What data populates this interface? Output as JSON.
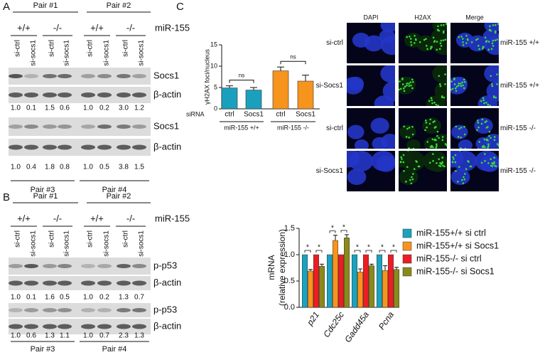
{
  "panel_labels": [
    "A",
    "B",
    "C"
  ],
  "blots": [
    {
      "top_pairs": [
        "Pair #1",
        "Pair #2"
      ],
      "genotypes": [
        "+/+",
        "-/-",
        "+/+",
        "-/-"
      ],
      "genotype_label": "miR-155",
      "lanes": [
        "si-ctrl",
        "si-socs1",
        "si-ctrl",
        "si-socs1",
        "si-ctrl",
        "si-socs1",
        "si-ctrl",
        "si-socs1"
      ],
      "blocks": [
        {
          "rows": [
            "Socs1",
            "β-actin"
          ],
          "quantification": [
            "1.0",
            "0.1",
            "1.5",
            "0.6",
            "1.0",
            "0.2",
            "3.0",
            "1.2"
          ]
        },
        {
          "rows": [
            "Socs1",
            "β-actin"
          ],
          "quantification": [
            "1.0",
            "0.4",
            "1.8",
            "0.8",
            "1.0",
            "0.5",
            "3.8",
            "1.5"
          ]
        }
      ],
      "bottom_pairs": [
        "Pair #3",
        "Pair #4"
      ]
    },
    {
      "top_pairs": [
        "Pair #1",
        "Pair #2"
      ],
      "genotypes": [
        "+/+",
        "-/-",
        "+/+",
        "-/-"
      ],
      "genotype_label": "miR-155",
      "lanes": [
        "si-ctrl",
        "si-socs1",
        "si-ctrl",
        "si-socs1",
        "si-ctrl",
        "si-socs1",
        "si-ctrl",
        "si-socs1"
      ],
      "blocks": [
        {
          "rows": [
            "p-p53",
            "β-actin"
          ],
          "quantification": [
            "1.0",
            "0.1",
            "1.6",
            "0.5",
            "1.0",
            "0.2",
            "1.3",
            "0.7"
          ]
        },
        {
          "rows": [
            "p-p53",
            "β-actin"
          ],
          "quantification": [
            "1.0",
            "0.6",
            "1.3",
            "1.1",
            "1.0",
            "0.7",
            "2.3",
            "1.3"
          ]
        }
      ],
      "bottom_pairs": [
        "Pair #3",
        "Pair #4"
      ]
    }
  ],
  "images": {
    "columns": [
      "DAPI",
      "H2AX",
      "Merge"
    ],
    "row_labels": [
      "si-ctrl",
      "si-Socs1",
      "si-ctrl",
      "si-Socs1"
    ],
    "genotype_labels": [
      "miR-155 +/+",
      "miR-155 +/+",
      "miR-155 -/-",
      "miR-155 -/-"
    ]
  },
  "chart_data": [
    {
      "type": "bar",
      "y_label": "γH2AX foci/nucleus",
      "x_label": "siRNA",
      "categories": [
        "ctrl",
        "Socs1",
        "ctrl",
        "Socs1"
      ],
      "groups": [
        "miR-155 +/+",
        "miR-155 -/-"
      ],
      "values": [
        4.9,
        4.4,
        8.9,
        6.5
      ],
      "errors": [
        0.5,
        0.6,
        0.9,
        1.4
      ],
      "colors": [
        "#1aa0bd",
        "#1aa0bd",
        "#f7941d",
        "#f7941d"
      ],
      "ylim": [
        0,
        15
      ],
      "yticks": [
        0,
        5,
        10,
        15
      ],
      "annotations": [
        "ns",
        "ns"
      ]
    },
    {
      "type": "grouped_bar",
      "y_label": [
        "mRNA",
        "(relative expression)"
      ],
      "categories": [
        "p21",
        "Cdc25c",
        "Gadd45a",
        "Pcna"
      ],
      "series": [
        {
          "name": "miR-155+/+ si ctrl",
          "color": "#1aa3c0",
          "values": [
            1,
            1,
            1,
            1
          ]
        },
        {
          "name": "miR-155+/+ si Socs1",
          "color": "#f7941d",
          "values": [
            0.69,
            1.27,
            0.67,
            0.7
          ],
          "errors": [
            0.03,
            0.1,
            0.06,
            0.09
          ]
        },
        {
          "name": "miR-155-/- si ctrl",
          "color": "#ed1c24",
          "values": [
            1,
            1,
            1,
            1
          ]
        },
        {
          "name": "miR-155-/- si Socs1",
          "color": "#8a8a1c",
          "values": [
            0.78,
            1.32,
            0.79,
            0.72
          ],
          "errors": [
            0.04,
            0.06,
            0.03,
            0.04
          ]
        }
      ],
      "ylim": [
        0,
        1.5
      ],
      "yticks": [
        {
          "value": 0,
          "label": "0.0"
        },
        0.5,
        {
          "value": 1,
          "label": "1.0"
        },
        1.5
      ],
      "annotations": [
        "*",
        "*",
        "*",
        "*",
        "*",
        "*",
        "*",
        "*"
      ]
    }
  ]
}
